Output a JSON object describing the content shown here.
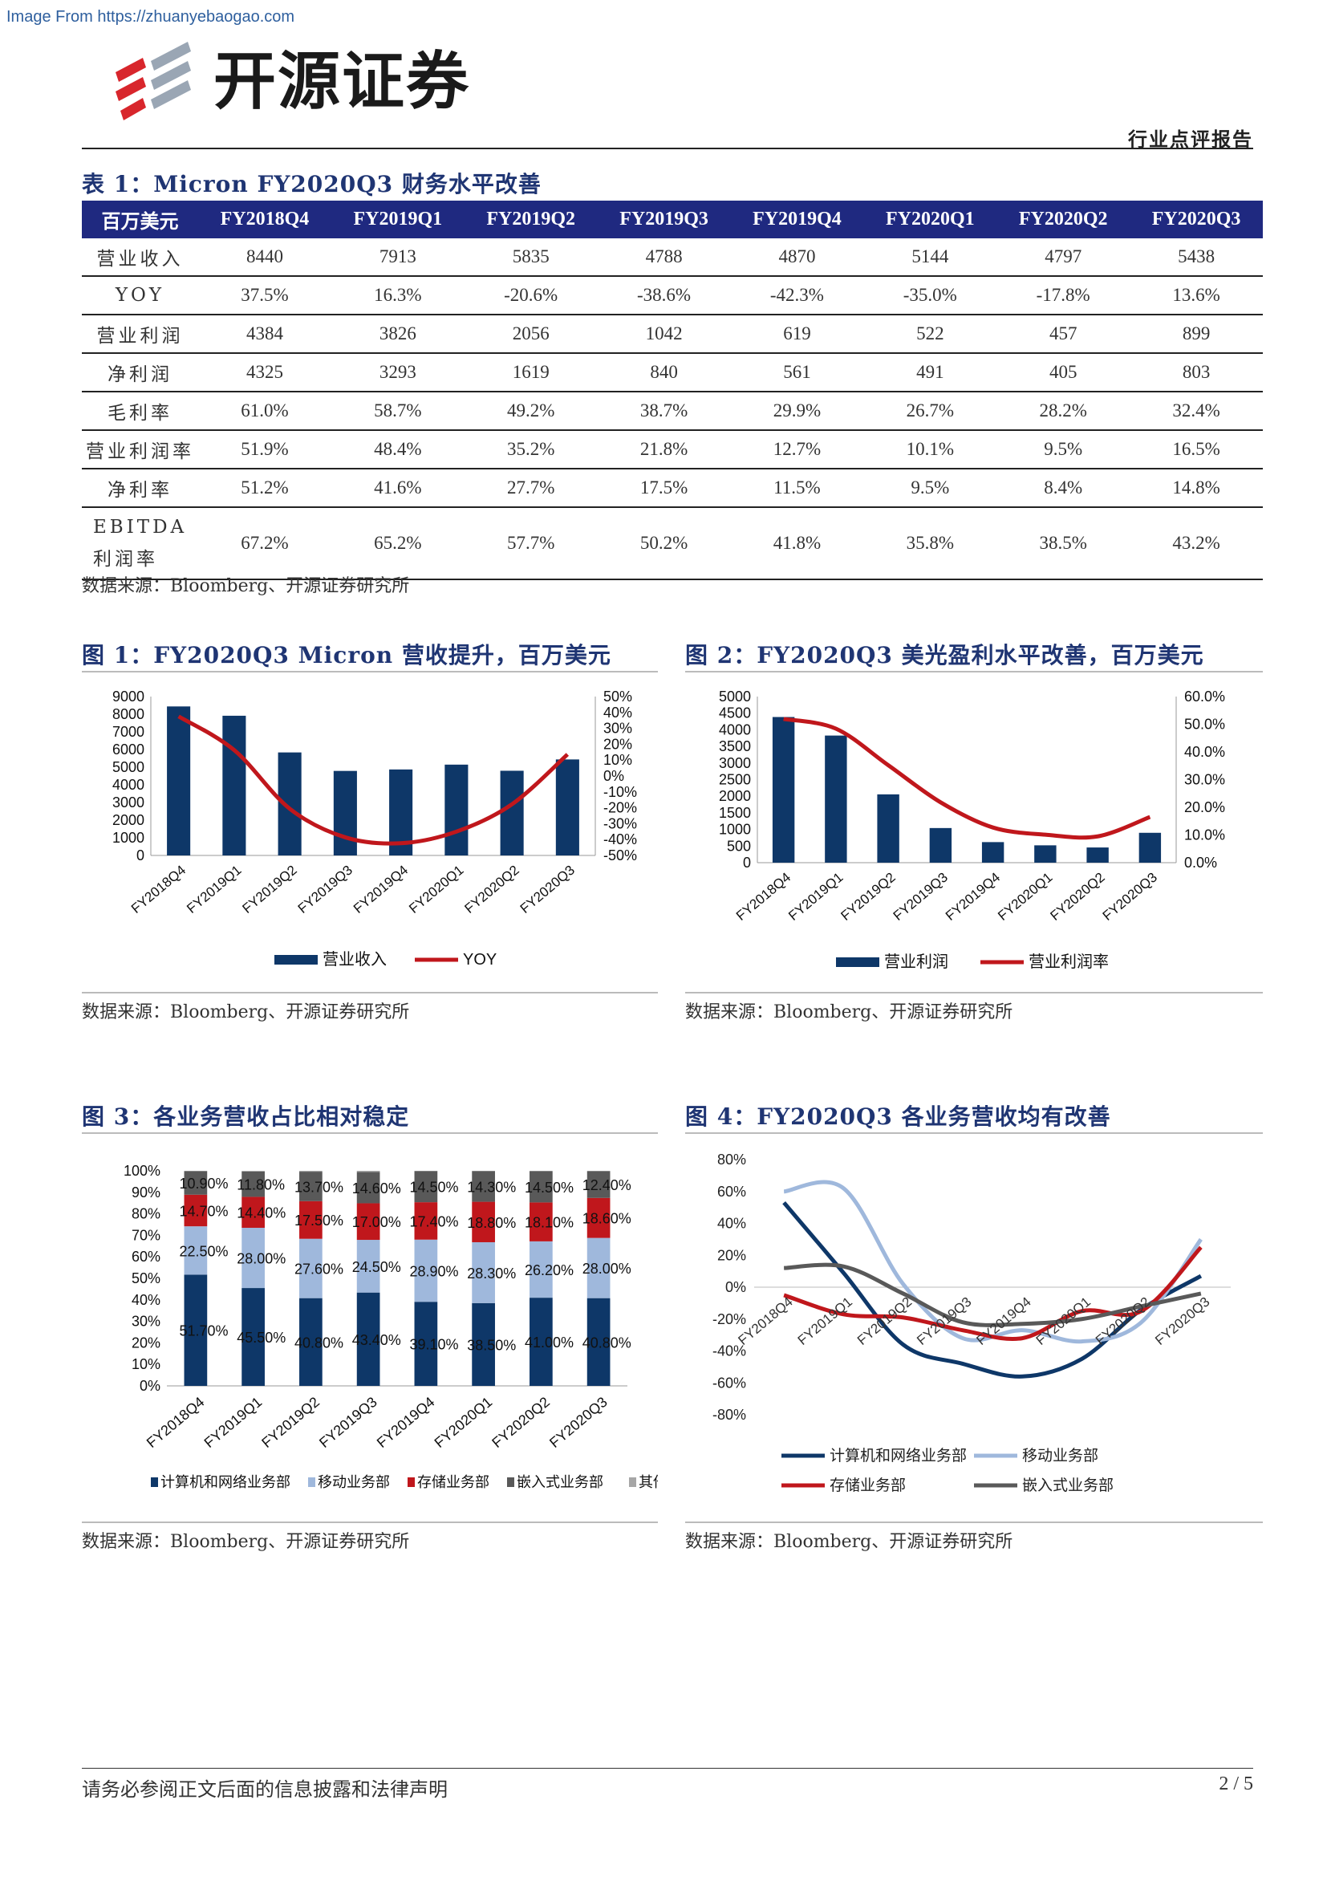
{
  "header": {
    "source_url": "Image From https://zhuanyebaogao.com",
    "brand": "开源证券",
    "doc_type": "行业点评报告"
  },
  "table1": {
    "title": "表 1：Micron FY2020Q3 财务水平改善",
    "columns": [
      "百万美元",
      "FY2018Q4",
      "FY2019Q1",
      "FY2019Q2",
      "FY2019Q3",
      "FY2019Q4",
      "FY2020Q1",
      "FY2020Q2",
      "FY2020Q3"
    ],
    "rows": [
      [
        "营业收入",
        "8440",
        "7913",
        "5835",
        "4788",
        "4870",
        "5144",
        "4797",
        "5438"
      ],
      [
        "YOY",
        "37.5%",
        "16.3%",
        "-20.6%",
        "-38.6%",
        "-42.3%",
        "-35.0%",
        "-17.8%",
        "13.6%"
      ],
      [
        "营业利润",
        "4384",
        "3826",
        "2056",
        "1042",
        "619",
        "522",
        "457",
        "899"
      ],
      [
        "净利润",
        "4325",
        "3293",
        "1619",
        "840",
        "561",
        "491",
        "405",
        "803"
      ],
      [
        "毛利率",
        "61.0%",
        "58.7%",
        "49.2%",
        "38.7%",
        "29.9%",
        "26.7%",
        "28.2%",
        "32.4%"
      ],
      [
        "营业利润率",
        "51.9%",
        "48.4%",
        "35.2%",
        "21.8%",
        "12.7%",
        "10.1%",
        "9.5%",
        "16.5%"
      ],
      [
        "净利率",
        "51.2%",
        "41.6%",
        "27.7%",
        "17.5%",
        "11.5%",
        "9.5%",
        "8.4%",
        "14.8%"
      ],
      [
        "EBITDA 利润率",
        "67.2%",
        "65.2%",
        "57.7%",
        "50.2%",
        "41.8%",
        "35.8%",
        "38.5%",
        "43.2%"
      ]
    ],
    "source": "数据来源：Bloomberg、开源证券研究所"
  },
  "colors": {
    "navy": "#0e3768",
    "red": "#c0171c",
    "light_blue": "#9fb8dc",
    "gray": "#595959",
    "light_gray": "#a6a6a6",
    "title_blue": "#1f3573"
  },
  "figures": [
    {
      "title": "图 1：FY2020Q3 Micron 营收提升，百万美元",
      "source": "数据来源：Bloomberg、开源证券研究所"
    },
    {
      "title": "图 2：FY2020Q3 美光盈利水平改善，百万美元",
      "source": "数据来源：Bloomberg、开源证券研究所"
    },
    {
      "title": "图 3：各业务营收占比相对稳定",
      "source": "数据来源：Bloomberg、开源证券研究所"
    },
    {
      "title": "图 4：FY2020Q3 各业务营收均有改善",
      "source": "数据来源：Bloomberg、开源证券研究所"
    }
  ],
  "chart_data": [
    {
      "type": "bar",
      "categories": [
        "FY2018Q4",
        "FY2019Q1",
        "FY2019Q2",
        "FY2019Q3",
        "FY2019Q4",
        "FY2020Q1",
        "FY2020Q2",
        "FY2020Q3"
      ],
      "series": [
        {
          "name": "营业收入",
          "type": "bar",
          "values": [
            8440,
            7913,
            5835,
            4788,
            4870,
            5144,
            4797,
            5438
          ]
        },
        {
          "name": "YOY",
          "type": "line",
          "values": [
            37.5,
            16.3,
            -20.6,
            -38.6,
            -42.3,
            -35.0,
            -17.8,
            13.6
          ]
        }
      ],
      "ylim": [
        0,
        9000
      ],
      "yticks": [
        "9000",
        "8000",
        "7000",
        "6000",
        "5000",
        "4000",
        "3000",
        "2000",
        "1000",
        "0"
      ],
      "y2lim": [
        -50,
        50
      ],
      "y2ticks": [
        "50%",
        "40%",
        "30%",
        "20%",
        "10%",
        "0%",
        "-10%",
        "-20%",
        "-30%",
        "-40%",
        "-50%"
      ],
      "legend": "bottom"
    },
    {
      "type": "bar",
      "categories": [
        "FY2018Q4",
        "FY2019Q1",
        "FY2019Q2",
        "FY2019Q3",
        "FY2019Q4",
        "FY2020Q1",
        "FY2020Q2",
        "FY2020Q3"
      ],
      "series": [
        {
          "name": "营业利润",
          "type": "bar",
          "values": [
            4384,
            3826,
            2056,
            1042,
            619,
            522,
            457,
            899
          ]
        },
        {
          "name": "营业利润率",
          "type": "line",
          "values": [
            51.9,
            48.4,
            35.2,
            21.8,
            12.7,
            10.1,
            9.5,
            16.5
          ]
        }
      ],
      "ylim": [
        0,
        5000
      ],
      "yticks": [
        "5000",
        "4500",
        "4000",
        "3500",
        "3000",
        "2500",
        "2000",
        "1500",
        "1000",
        "500",
        "0"
      ],
      "y2lim": [
        0,
        60
      ],
      "y2ticks": [
        "60.0%",
        "50.0%",
        "40.0%",
        "30.0%",
        "20.0%",
        "10.0%",
        "0.0%"
      ],
      "legend": "bottom"
    },
    {
      "type": "bar",
      "stacked": true,
      "categories": [
        "FY2018Q4",
        "FY2019Q1",
        "FY2019Q2",
        "FY2019Q3",
        "FY2019Q4",
        "FY2020Q1",
        "FY2020Q2",
        "FY2020Q3"
      ],
      "series": [
        {
          "name": "计算机和网络业务部",
          "values": [
            51.7,
            45.5,
            40.8,
            43.4,
            39.1,
            38.5,
            41.0,
            40.8
          ],
          "labels": [
            "51.70%",
            "45.50%",
            "40.80%",
            "43.40%",
            "39.10%",
            "38.50%",
            "41.00%",
            "40.80%"
          ]
        },
        {
          "name": "移动业务部",
          "values": [
            22.5,
            28.0,
            27.6,
            24.5,
            28.9,
            28.3,
            26.2,
            28.0
          ],
          "labels": [
            "22.50%",
            "28.00%",
            "27.60%",
            "24.50%",
            "28.90%",
            "28.30%",
            "26.20%",
            "28.00%"
          ]
        },
        {
          "name": "存储业务部",
          "values": [
            14.7,
            14.4,
            17.5,
            17.0,
            17.4,
            18.8,
            18.1,
            18.6
          ],
          "labels": [
            "14.70%",
            "14.40%",
            "17.50%",
            "17.00%",
            "17.40%",
            "18.80%",
            "18.10%",
            "18.60%"
          ]
        },
        {
          "name": "嵌入式业务部",
          "values": [
            10.9,
            11.8,
            13.7,
            14.6,
            14.5,
            14.3,
            14.5,
            12.4
          ],
          "labels": [
            "10.90%",
            "11.80%",
            "13.70%",
            "14.60%",
            "14.50%",
            "14.30%",
            "14.50%",
            "12.40%"
          ]
        },
        {
          "name": "其他",
          "values": [
            0.2,
            0.3,
            0.4,
            0.5,
            0.1,
            0.1,
            0.2,
            0.2
          ]
        }
      ],
      "ylim": [
        0,
        100
      ],
      "yticks": [
        "100%",
        "90%",
        "80%",
        "70%",
        "60%",
        "50%",
        "40%",
        "30%",
        "20%",
        "10%",
        "0%"
      ],
      "legend": "bottom"
    },
    {
      "type": "line",
      "categories": [
        "FY2018Q4",
        "FY2019Q1",
        "FY2019Q2",
        "FY2019Q3",
        "FY2019Q4",
        "FY2020Q1",
        "FY2020Q2",
        "FY2020Q3"
      ],
      "series": [
        {
          "name": "计算机和网络业务部",
          "values": [
            53,
            9,
            -36,
            -48,
            -56,
            -45,
            -14,
            7
          ]
        },
        {
          "name": "移动业务部",
          "values": [
            60,
            62,
            2,
            -32,
            -27,
            -34,
            -22,
            30
          ]
        },
        {
          "name": "存储业务部",
          "values": [
            -5,
            -17,
            -19,
            -27,
            -32,
            -15,
            -15,
            25
          ]
        },
        {
          "name": "嵌入式业务部",
          "values": [
            12,
            13,
            -4,
            -22,
            -23,
            -20,
            -12,
            -4
          ]
        }
      ],
      "ylim": [
        -80,
        80
      ],
      "yticks": [
        "80%",
        "60%",
        "40%",
        "20%",
        "0%",
        "-20%",
        "-40%",
        "-60%",
        "-80%"
      ],
      "legend": "bottom"
    }
  ],
  "footer": {
    "note": "请务必参阅正文后面的信息披露和法律声明",
    "page": "2 / 5"
  }
}
